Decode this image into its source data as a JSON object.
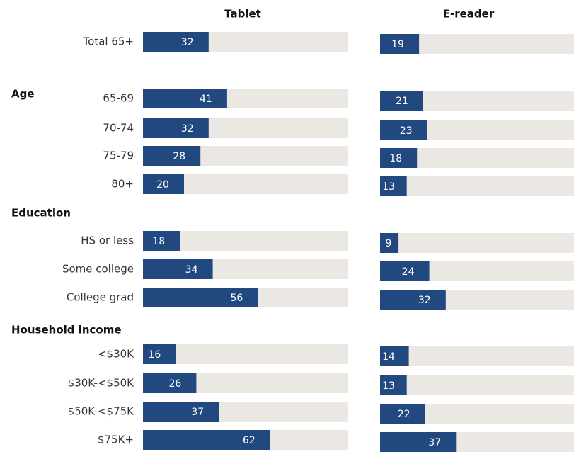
{
  "chart_data": {
    "type": "bar",
    "categories": [
      "Total 65+",
      "65-69",
      "70-74",
      "75-79",
      "80+",
      "HS or less",
      "Some college",
      "College grad",
      "<$30K",
      "$30K-<$50K",
      "$50K-<$75K",
      "$75K+"
    ],
    "group_labels": [
      "Age",
      "Education",
      "Household income"
    ],
    "series": [
      {
        "name": "Tablet",
        "color": "#21497f",
        "values": [
          32,
          41,
          32,
          28,
          20,
          18,
          34,
          56,
          16,
          26,
          37,
          62
        ]
      },
      {
        "name": "E-reader",
        "color": "#21497f",
        "values": [
          19,
          21,
          23,
          18,
          13,
          9,
          24,
          32,
          14,
          13,
          22,
          37
        ]
      }
    ],
    "xlim": [
      0,
      100
    ],
    "track_color": "#ebe8e3"
  }
}
